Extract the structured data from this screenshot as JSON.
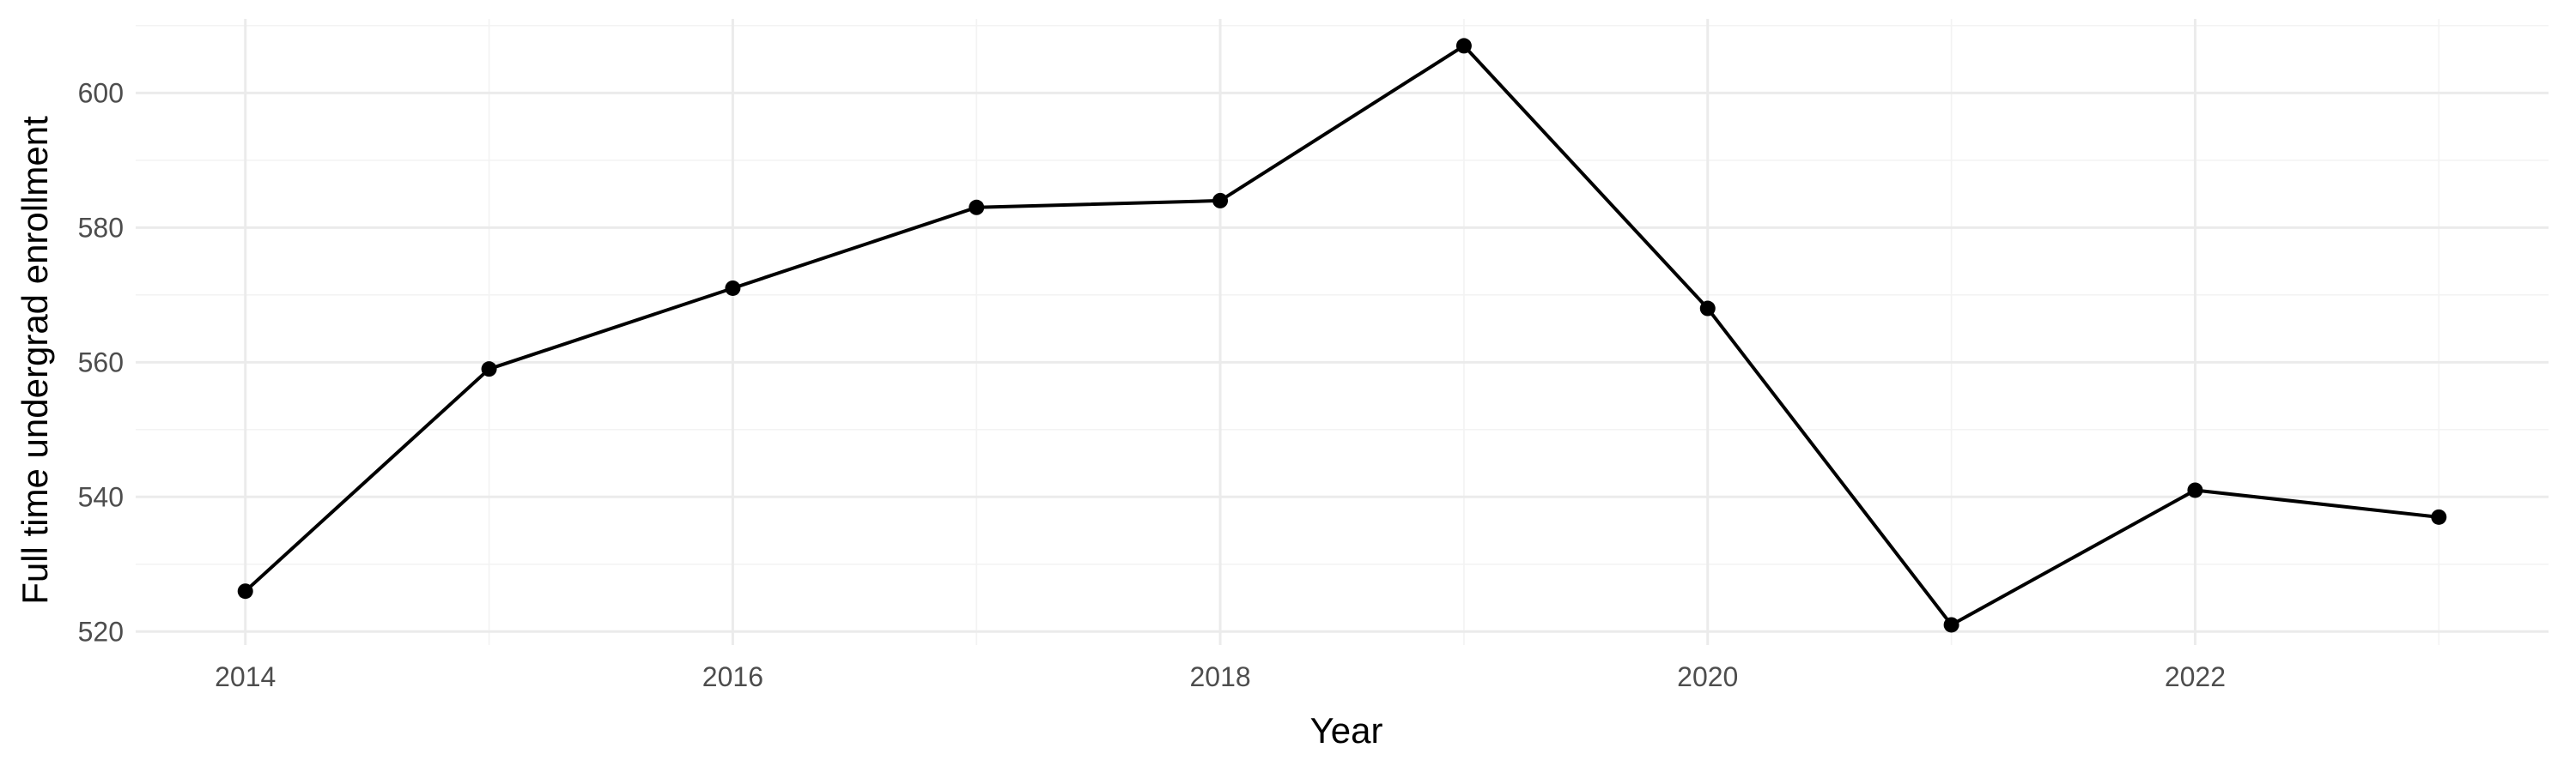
{
  "chart_data": {
    "type": "line",
    "title": "",
    "xlabel": "Year",
    "ylabel": "Full time undergrad enrollment",
    "x": [
      2014,
      2015,
      2016,
      2017,
      2018,
      2019,
      2020,
      2021,
      2022,
      2023
    ],
    "series": [
      {
        "values": [
          526,
          559,
          571,
          583,
          584,
          607,
          568,
          521,
          541,
          537
        ]
      }
    ],
    "xlim": [
      2013.55,
      2023.45
    ],
    "ylim": [
      518,
      611
    ],
    "x_ticks": [
      2014,
      2016,
      2018,
      2020,
      2022
    ],
    "x_tick_labels": [
      "2014",
      "2016",
      "2018",
      "2020",
      "2022"
    ],
    "y_ticks": [
      520,
      540,
      560,
      580,
      600
    ],
    "y_tick_labels": [
      "520",
      "540",
      "560",
      "580",
      "600"
    ],
    "grid": true,
    "legend": "none",
    "colors": {
      "line": "#000000",
      "point": "#000000",
      "grid": "#ebebeb",
      "tick_text": "#4d4d4d"
    }
  }
}
